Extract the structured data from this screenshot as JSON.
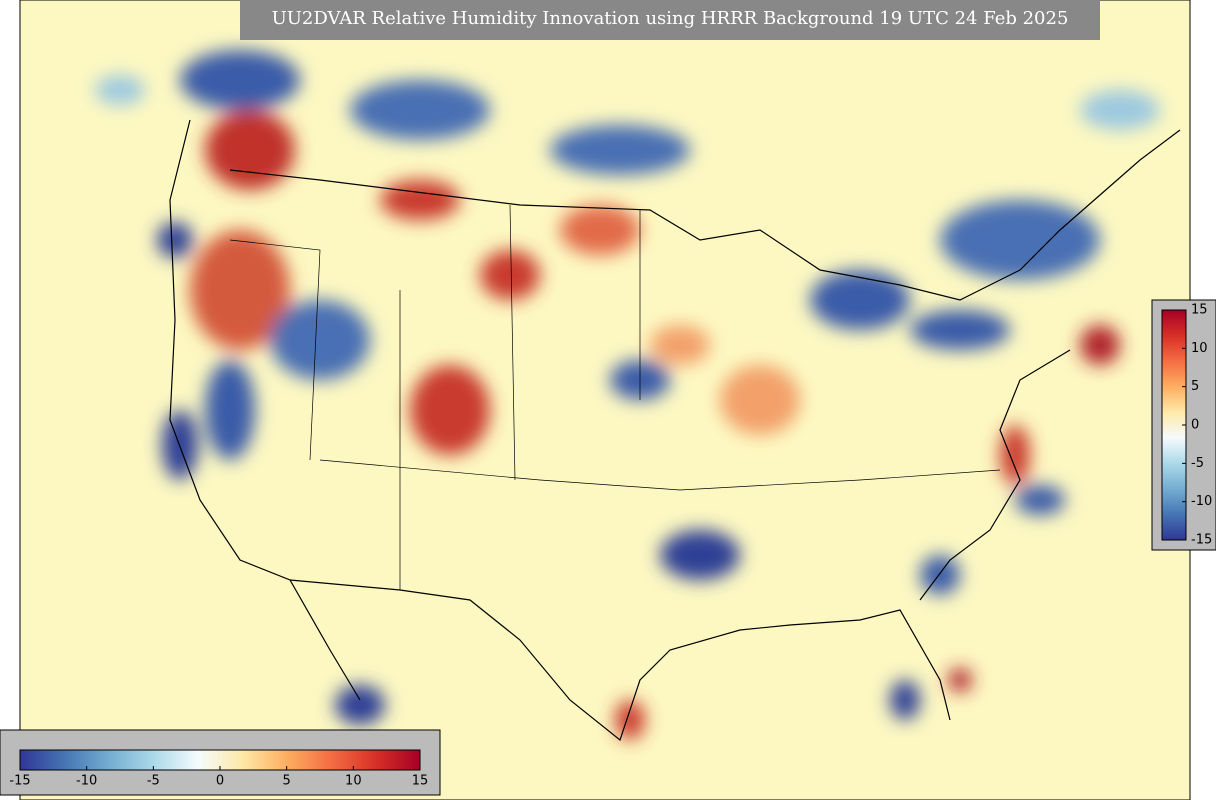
{
  "title": "UU2DVAR Relative Humidity Innovation using HRRR Background 19 UTC 24 Feb 2025",
  "colors": [
    "#313695",
    "#4575b4",
    "#74add1",
    "#abd9e9",
    "#f5fbfd",
    "#fee9a8",
    "#fdae61",
    "#f46d43",
    "#d73027",
    "#a50026"
  ],
  "horizontal_colorbar": {
    "lim": [
      -15,
      15
    ],
    "ticks": [
      -15,
      -10,
      -5,
      0,
      5,
      10,
      15
    ]
  },
  "vertical_colorbar": {
    "lim": [
      -15,
      15
    ],
    "ticks": [
      15,
      10,
      5,
      0,
      -5,
      -10,
      -15
    ]
  }
}
